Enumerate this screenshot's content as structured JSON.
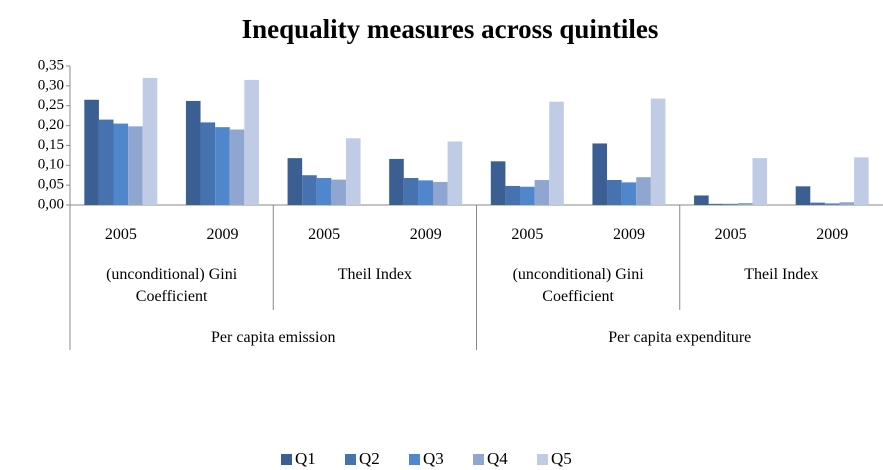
{
  "chart_data": {
    "type": "bar",
    "title": "Inequality measures across quintiles",
    "groups": [
      {
        "name": "Per capita emission",
        "subgroups": [
          {
            "name": "(unconditional) Gini Coefficient",
            "categories": [
              "2005",
              "2009"
            ]
          },
          {
            "name": "Theil Index",
            "categories": [
              "2005",
              "2009"
            ]
          }
        ]
      },
      {
        "name": "Per capita expenditure",
        "subgroups": [
          {
            "name": "(unconditional) Gini Coefficient",
            "categories": [
              "2005",
              "2009"
            ]
          },
          {
            "name": "Theil Index",
            "categories": [
              "2005",
              "2009"
            ]
          }
        ]
      }
    ],
    "series": [
      {
        "name": "Q1",
        "color": "#3b5f92",
        "values": [
          0.265,
          0.262,
          0.118,
          0.116,
          0.11,
          0.155,
          0.024,
          0.047
        ]
      },
      {
        "name": "Q2",
        "color": "#4673b0",
        "values": [
          0.215,
          0.208,
          0.075,
          0.068,
          0.048,
          0.063,
          0.003,
          0.006
        ]
      },
      {
        "name": "Q3",
        "color": "#5086cc",
        "values": [
          0.205,
          0.196,
          0.068,
          0.062,
          0.046,
          0.057,
          0.003,
          0.004
        ]
      },
      {
        "name": "Q4",
        "color": "#8fa6d1",
        "values": [
          0.198,
          0.19,
          0.064,
          0.058,
          0.063,
          0.07,
          0.005,
          0.007
        ]
      },
      {
        "name": "Q5",
        "color": "#c0cce6",
        "values": [
          0.32,
          0.315,
          0.168,
          0.16,
          0.26,
          0.268,
          0.118,
          0.12
        ]
      }
    ],
    "ylim": [
      0,
      0.35
    ],
    "yticks": [
      {
        "value": 0,
        "label": "0,00"
      },
      {
        "value": 0.05,
        "label": "0,05"
      },
      {
        "value": 0.1,
        "label": "0,10"
      },
      {
        "value": 0.15,
        "label": "0,15"
      },
      {
        "value": 0.2,
        "label": "0,20"
      },
      {
        "value": 0.25,
        "label": "0,25"
      },
      {
        "value": 0.3,
        "label": "0,30"
      },
      {
        "value": 0.35,
        "label": "0,35"
      }
    ],
    "legend": "bottom"
  }
}
